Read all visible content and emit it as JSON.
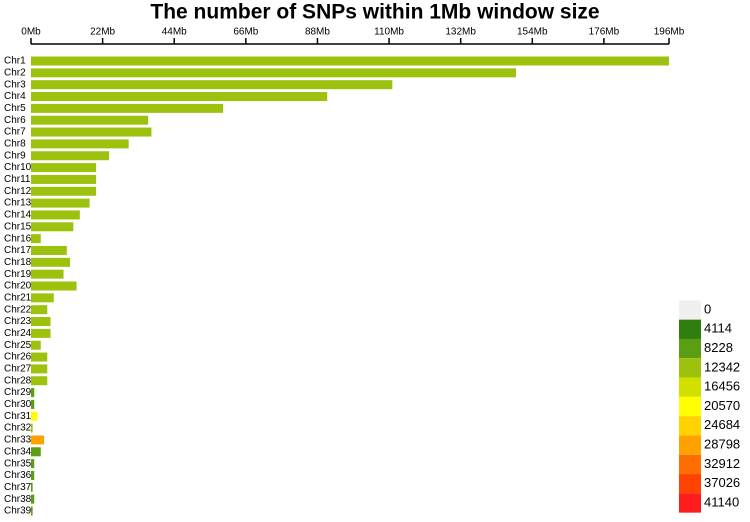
{
  "chart_data": {
    "type": "bar",
    "orientation": "horizontal",
    "title": "The number of SNPs within 1Mb window size",
    "categories": [
      "Chr1",
      "Chr2",
      "Chr3",
      "Chr4",
      "Chr5",
      "Chr6",
      "Chr7",
      "Chr8",
      "Chr9",
      "Chr10",
      "Chr11",
      "Chr12",
      "Chr13",
      "Chr14",
      "Chr15",
      "Chr16",
      "Chr17",
      "Chr18",
      "Chr19",
      "Chr20",
      "Chr21",
      "Chr22",
      "Chr23",
      "Chr24",
      "Chr25",
      "Chr26",
      "Chr27",
      "Chr28",
      "Chr29",
      "Chr30",
      "Chr31",
      "Chr32",
      "Chr33",
      "Chr34",
      "Chr35",
      "Chr36",
      "Chr37",
      "Chr38",
      "Chr39"
    ],
    "values": [
      196,
      149,
      111,
      91,
      59,
      36,
      37,
      30,
      24,
      20,
      20,
      20,
      18,
      15,
      13,
      3,
      11,
      12,
      10,
      14,
      7,
      5,
      6,
      6,
      3,
      5,
      5,
      5,
      1,
      1,
      2,
      0.5,
      4,
      3,
      1,
      1,
      0.5,
      1,
      0.5
    ],
    "density_values": [
      14000,
      14000,
      13000,
      14000,
      14500,
      15000,
      13500,
      13000,
      14500,
      15000,
      14000,
      14500,
      15000,
      15500,
      14500,
      13000,
      15000,
      15000,
      14500,
      15000,
      15500,
      13000,
      15500,
      15500,
      13000,
      15000,
      14500,
      15000,
      12000,
      12000,
      21000,
      16000,
      30000,
      9000,
      12000,
      12000,
      12000,
      10000,
      12000
    ],
    "xlim": [
      0,
      196
    ],
    "xticks": [
      {
        "value": 0,
        "label": "0Mb"
      },
      {
        "value": 22,
        "label": "22Mb"
      },
      {
        "value": 44,
        "label": "44Mb"
      },
      {
        "value": 66,
        "label": "66Mb"
      },
      {
        "value": 88,
        "label": "88Mb"
      },
      {
        "value": 110,
        "label": "110Mb"
      },
      {
        "value": 132,
        "label": "132Mb"
      },
      {
        "value": 154,
        "label": "154Mb"
      },
      {
        "value": 176,
        "label": "176Mb"
      },
      {
        "value": 196,
        "label": "196Mb"
      }
    ],
    "colorscale": {
      "ticks": [
        0,
        4114,
        8228,
        12342,
        16456,
        20570,
        24684,
        28798,
        32912,
        37026,
        41140
      ],
      "colors": [
        "#f0f0f0",
        "#2f7d0c",
        "#5c9e12",
        "#9cc20e",
        "#d2e000",
        "#ffff00",
        "#ffd200",
        "#ffa200",
        "#ff6e00",
        "#ff4200",
        "#ff1c1c"
      ]
    }
  }
}
